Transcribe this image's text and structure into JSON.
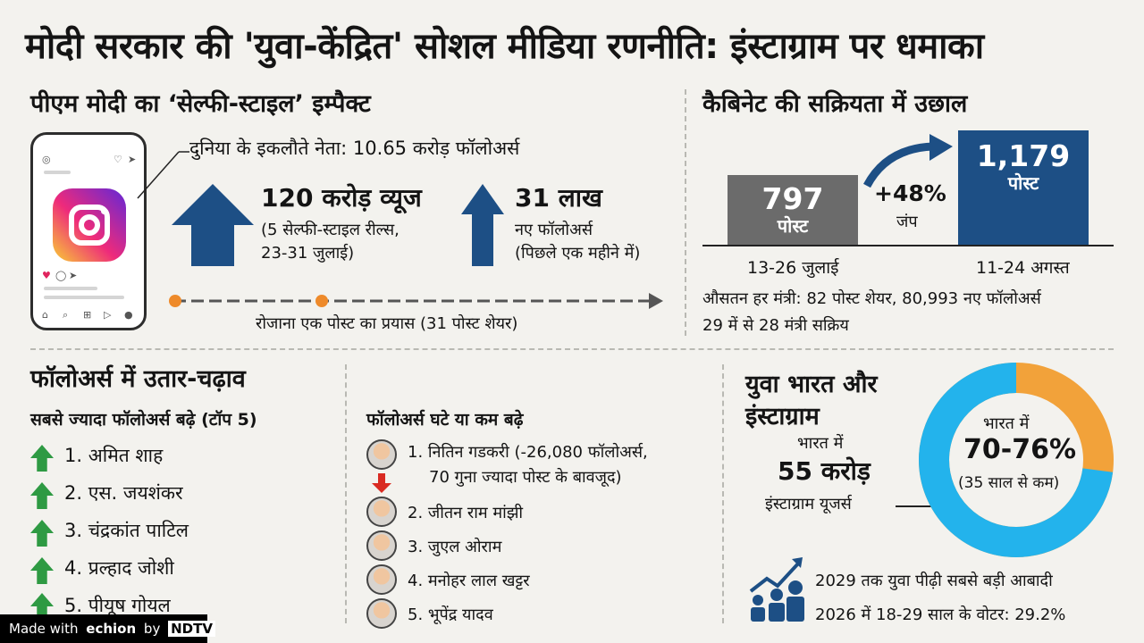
{
  "title": "मोदी सरकार की 'युवा-केंद्रित' सोशल मीडिया रणनीति: इंस्टाग्राम पर धमाका",
  "pm_section": {
    "heading": "पीएम मोदी का ‘सेल्फी-स्टाइल’ इम्पैक्ट",
    "followers_note": "दुनिया के इकलौते नेता: 10.65 करोड़ फॉलोअर्स",
    "views_value": "120 करोड़ व्यूज",
    "views_sub1": "(5 सेल्फी-स्टाइल रील्स,",
    "views_sub2": "23-31 जुलाई)",
    "new_followers_value": "31 लाख",
    "new_followers_sub1": "नए फॉलोअर्स",
    "new_followers_sub2": "(पिछले एक महीने में)",
    "timeline_caption": "रोजाना एक पोस्ट का प्रयास (31 पोस्ट शेयर)"
  },
  "cabinet_section": {
    "heading": "कैबिनेट की सक्रियता में उछाल",
    "bars": [
      {
        "value": "797",
        "unit": "पोस्ट",
        "period": "13-26 जुलाई",
        "color": "#6b6b6b"
      },
      {
        "value": "1,179",
        "unit": "पोस्ट",
        "period": "11-24 अगस्त",
        "color": "#1d4f85"
      }
    ],
    "jump_value": "+48%",
    "jump_label": "जंप",
    "avg_line": "औसतन हर मंत्री: 82 पोस्ट शेयर, 80,993 नए फॉलोअर्स",
    "active_line": "29 में से 28 मंत्री सक्रिय"
  },
  "followers_section": {
    "heading": "फॉलोअर्स में उतार-चढ़ाव",
    "top_heading": "सबसे ज्यादा फॉलोअर्स बढ़े (टॉप 5)",
    "top_list": [
      "1. अमित शाह",
      "2. एस. जयशंकर",
      "3. चंद्रकांत पाटिल",
      "4. प्रल्हाद जोशी",
      "5. पीयूष गोयल"
    ],
    "low_heading": "फॉलोअर्स घटे या कम बढ़े",
    "low_first_line1": "1. नितिन गडकरी (-26,080 फॉलोअर्स,",
    "low_first_line2": "70 गुना ज्यादा पोस्ट के बावजूद)",
    "low_list": [
      "2. जीतन राम मांझी",
      "3. जुएल ओराम",
      "4. मनोहर लाल खट्टर",
      "5. भूपेंद्र यादव"
    ]
  },
  "youth_section": {
    "heading1": "युवा भारत और",
    "heading2": "इंस्टाग्राम",
    "india_label": "भारत में",
    "users_value": "55 करोड़",
    "users_label": "इंस्टाग्राम यूजर्स",
    "donut_label": "भारत में",
    "donut_value": "70-76%",
    "donut_sub": "(35 साल से कम)",
    "donut_share_percent": 73,
    "donut_colors": {
      "young": "#23b3ec",
      "rest": "#f2a23a"
    },
    "fact1": "2029 तक युवा पीढ़ी सबसे बड़ी आबादी",
    "fact2": "2026 में 18-29 साल के वोटर: 29.2%"
  },
  "footer": {
    "made_with": "Made with",
    "brand": "echion",
    "by": "by",
    "partner": "NDTV"
  }
}
